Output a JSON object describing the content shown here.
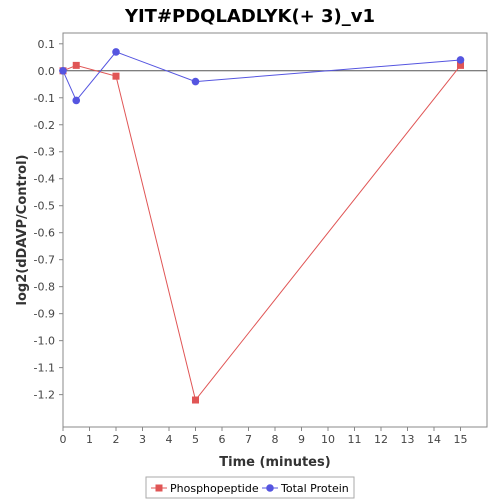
{
  "chart_data": {
    "type": "line",
    "title": "YIT#PDQLADLYK(+ 3)_v1",
    "xlabel": "Time (minutes)",
    "ylabel": "log2(dDAVP/Control)",
    "xlim": [
      0,
      16
    ],
    "ylim": [
      -1.32,
      0.14
    ],
    "x_ticks": [
      0,
      1,
      2,
      3,
      4,
      5,
      6,
      7,
      8,
      9,
      10,
      11,
      12,
      13,
      14,
      15
    ],
    "x_tick_labels": [
      "0",
      "1",
      "2",
      "3",
      "4",
      "5",
      "6",
      "7",
      "8",
      "9",
      "10",
      "11",
      "12",
      "13",
      "14",
      "15"
    ],
    "y_ticks": [
      0.1,
      0.0,
      -0.1,
      -0.2,
      -0.3,
      -0.4,
      -0.5,
      -0.6,
      -0.7,
      -0.8,
      -0.9,
      -1.0,
      -1.1,
      -1.2
    ],
    "y_tick_labels": [
      "0.1",
      "0.0",
      "-0.1",
      "-0.2",
      "-0.3",
      "-0.4",
      "-0.5",
      "-0.6",
      "-0.7",
      "-0.8",
      "-0.9",
      "-1.0",
      "-1.1",
      "-1.2"
    ],
    "zero_line": true,
    "grid": false,
    "legend_position": "bottom",
    "series": [
      {
        "name": "Phosphopeptide",
        "color": "#e05555",
        "marker": "square",
        "x": [
          0,
          0.5,
          2,
          5,
          15
        ],
        "y": [
          0.0,
          0.02,
          -0.02,
          -1.22,
          0.02
        ]
      },
      {
        "name": "Total Protein",
        "color": "#5555e0",
        "marker": "circle",
        "x": [
          0,
          0.5,
          2,
          5,
          15
        ],
        "y": [
          0.0,
          -0.11,
          0.07,
          -0.04,
          0.04
        ]
      }
    ]
  }
}
